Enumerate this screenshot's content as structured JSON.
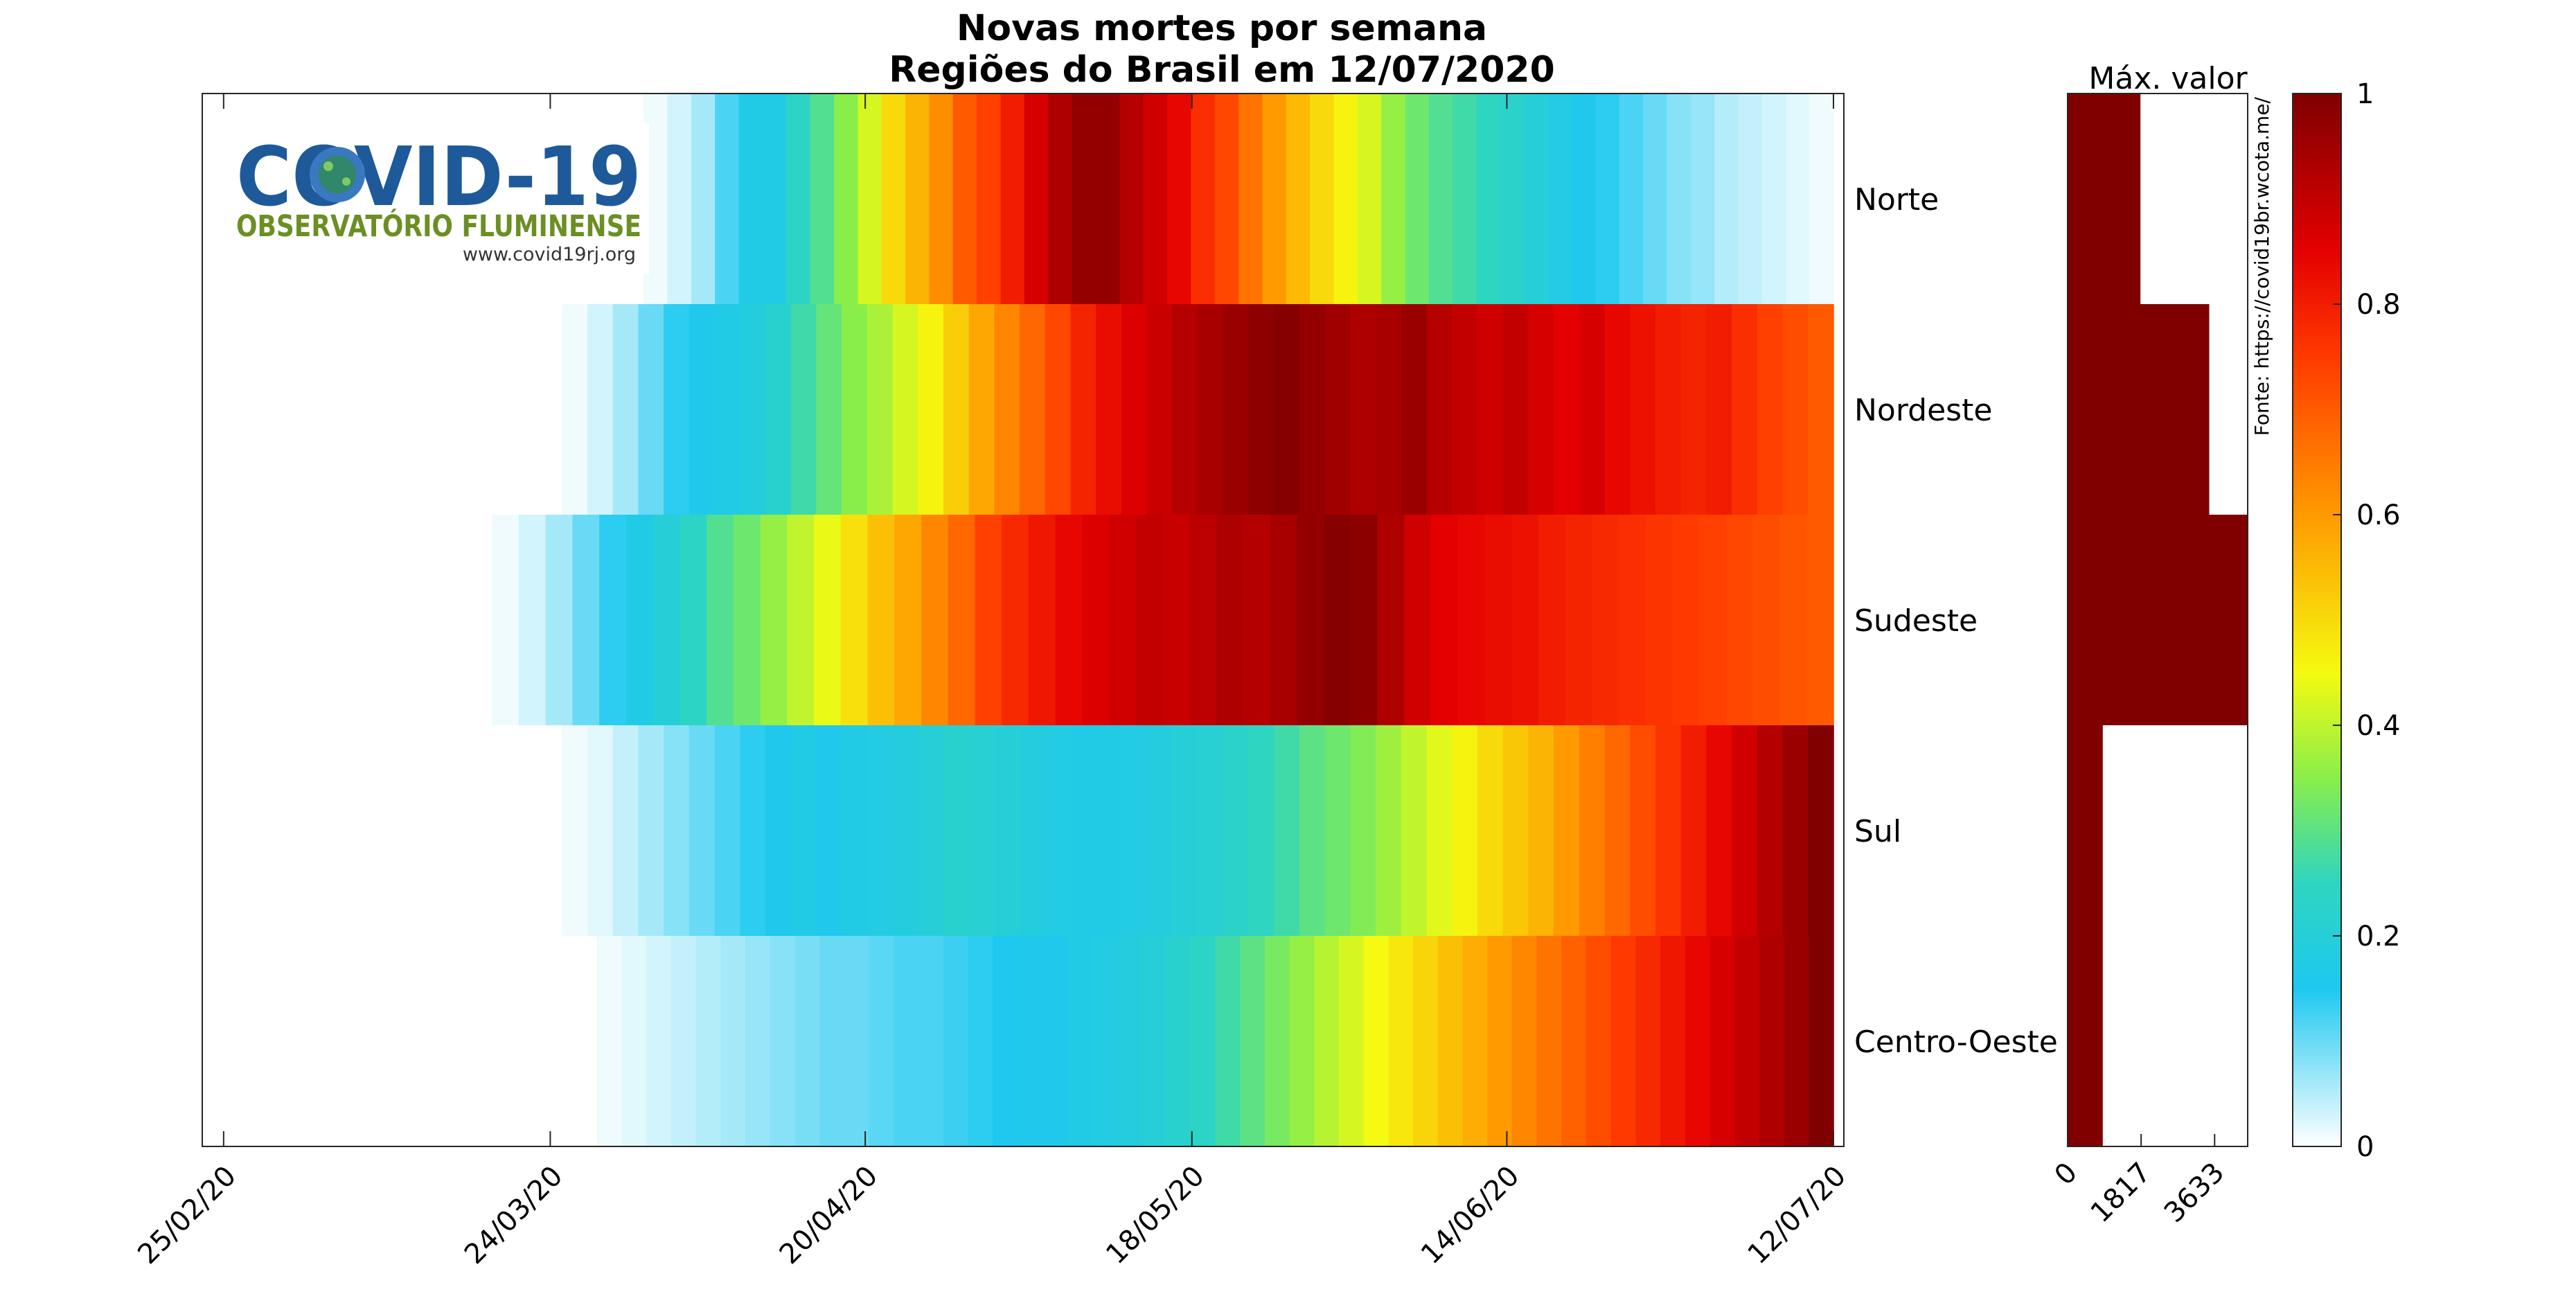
{
  "logo": {
    "title": "COVID-19",
    "subtitle": "OBSERVATÓRIO FLUMINENSE",
    "url": "www.covid19rj.org"
  },
  "source_note": "Fonte: https://covid19br.wcota.me/",
  "chart_data": [
    {
      "type": "heatmap",
      "title": "Novas mortes por semana",
      "subtitle": "Regiões do Brasil em 12/07/2020",
      "x_tick_labels": [
        "25/02/20",
        "24/03/20",
        "20/04/20",
        "18/05/20",
        "14/06/20",
        "12/07/20"
      ],
      "x_tick_days": [
        0,
        28,
        55,
        83,
        110,
        138
      ],
      "x_range_days": [
        -1,
        138
      ],
      "rows": [
        "Norte",
        "Nordeste",
        "Sudeste",
        "Sul",
        "Centro-Oeste"
      ],
      "first_day": [
        36,
        29,
        23,
        29,
        32
      ],
      "series": [
        {
          "name": "Norte",
          "values": [
            0.01,
            0.03,
            0.06,
            0.12,
            0.17,
            0.17,
            0.24,
            0.29,
            0.35,
            0.42,
            0.5,
            0.56,
            0.62,
            0.7,
            0.74,
            0.8,
            0.87,
            0.93,
            0.97,
            0.97,
            0.92,
            0.88,
            0.84,
            0.77,
            0.73,
            0.66,
            0.6,
            0.55,
            0.5,
            0.46,
            0.42,
            0.36,
            0.32,
            0.29,
            0.27,
            0.25,
            0.23,
            0.2,
            0.18,
            0.16,
            0.14,
            0.12,
            0.1,
            0.08,
            0.07,
            0.05,
            0.04,
            0.03,
            0.02,
            0.01
          ]
        },
        {
          "name": "Nordeste",
          "values": [
            0.01,
            0.03,
            0.06,
            0.1,
            0.14,
            0.16,
            0.17,
            0.19,
            0.22,
            0.27,
            0.31,
            0.35,
            0.38,
            0.42,
            0.46,
            0.52,
            0.58,
            0.63,
            0.68,
            0.73,
            0.79,
            0.83,
            0.86,
            0.89,
            0.92,
            0.94,
            0.96,
            0.98,
            0.99,
            0.97,
            0.95,
            0.93,
            0.94,
            0.96,
            0.92,
            0.9,
            0.88,
            0.9,
            0.87,
            0.85,
            0.87,
            0.84,
            0.82,
            0.8,
            0.79,
            0.8,
            0.77,
            0.74,
            0.72,
            0.7
          ]
        },
        {
          "name": "Sudeste",
          "values": [
            0.01,
            0.03,
            0.06,
            0.1,
            0.14,
            0.17,
            0.2,
            0.24,
            0.29,
            0.32,
            0.36,
            0.4,
            0.44,
            0.49,
            0.54,
            0.58,
            0.63,
            0.68,
            0.74,
            0.78,
            0.81,
            0.84,
            0.86,
            0.88,
            0.9,
            0.89,
            0.91,
            0.93,
            0.92,
            0.94,
            0.97,
            0.99,
            0.98,
            0.93,
            0.88,
            0.85,
            0.84,
            0.83,
            0.82,
            0.8,
            0.79,
            0.78,
            0.77,
            0.76,
            0.75,
            0.74,
            0.73,
            0.72,
            0.71,
            0.7
          ]
        },
        {
          "name": "Sul",
          "values": [
            0.01,
            0.02,
            0.04,
            0.06,
            0.08,
            0.1,
            0.12,
            0.14,
            0.16,
            0.17,
            0.16,
            0.17,
            0.18,
            0.19,
            0.2,
            0.22,
            0.21,
            0.2,
            0.19,
            0.18,
            0.17,
            0.17,
            0.18,
            0.19,
            0.2,
            0.21,
            0.23,
            0.25,
            0.27,
            0.3,
            0.32,
            0.34,
            0.37,
            0.4,
            0.43,
            0.46,
            0.5,
            0.53,
            0.56,
            0.6,
            0.64,
            0.68,
            0.72,
            0.76,
            0.8,
            0.84,
            0.88,
            0.92,
            0.96,
            1.0
          ]
        },
        {
          "name": "Centro-Oeste",
          "values": [
            0.01,
            0.02,
            0.03,
            0.04,
            0.05,
            0.06,
            0.07,
            0.08,
            0.09,
            0.1,
            0.1,
            0.11,
            0.12,
            0.12,
            0.13,
            0.14,
            0.15,
            0.16,
            0.16,
            0.17,
            0.18,
            0.19,
            0.2,
            0.22,
            0.24,
            0.27,
            0.3,
            0.33,
            0.36,
            0.39,
            0.42,
            0.45,
            0.48,
            0.51,
            0.54,
            0.57,
            0.6,
            0.63,
            0.66,
            0.69,
            0.72,
            0.75,
            0.78,
            0.81,
            0.84,
            0.87,
            0.9,
            0.93,
            0.96,
            1.0
          ]
        }
      ]
    },
    {
      "type": "bar",
      "title": "Máx. valor",
      "orientation": "horizontal",
      "categories": [
        "Norte",
        "Nordeste",
        "Sudeste",
        "Sul",
        "Centro-Oeste"
      ],
      "values": [
        1800,
        3500,
        4450,
        870,
        870
      ],
      "x_tick_labels": [
        "0",
        "1817",
        "3633"
      ],
      "x_ticks": [
        0,
        1817,
        3633
      ],
      "xlim": [
        0,
        4450
      ],
      "color": "#800000"
    },
    {
      "type": "colorbar",
      "range": [
        0,
        1
      ],
      "tick_labels": [
        "0",
        "0.2",
        "0.4",
        "0.6",
        "0.8",
        "1"
      ],
      "ticks": [
        0,
        0.2,
        0.4,
        0.6,
        0.8,
        1
      ]
    }
  ]
}
